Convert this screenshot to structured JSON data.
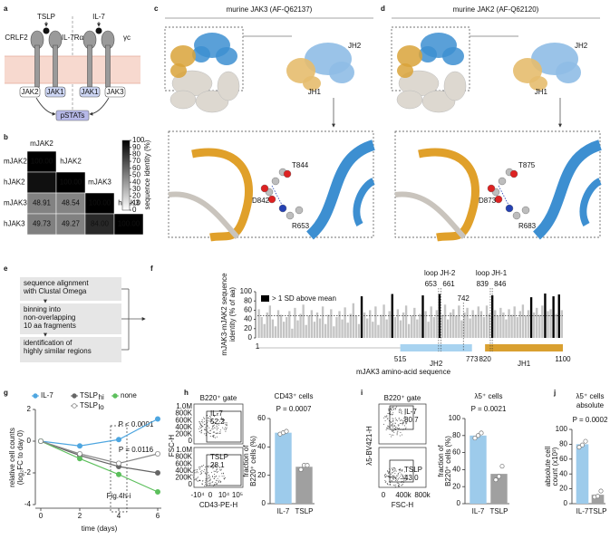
{
  "a": {
    "letter": "a",
    "tslp": "TSLP",
    "il7": "IL-7",
    "crlf2": "CRLF2",
    "il7ra": "IL-7Rα",
    "gc": "γc",
    "jak2": "JAK2",
    "jak1a": "JAK1",
    "jak1b": "JAK1",
    "jak3": "JAK3",
    "pstats": "pSTATs"
  },
  "b": {
    "letter": "b",
    "type": "heatmap",
    "col_labels": [
      "mJAK2",
      "hJAK2",
      "mJAK3",
      "hJAK3"
    ],
    "row_labels": [
      "mJAK2",
      "hJAK2",
      "mJAK3",
      "hJAK3"
    ],
    "values": [
      [
        100
      ],
      [
        93.73,
        100
      ],
      [
        48.91,
        48.54,
        100
      ],
      [
        49.73,
        49.27,
        84,
        100
      ]
    ],
    "value_labels": [
      [
        "100.00"
      ],
      [
        "93.73",
        "100.00"
      ],
      [
        "48.91",
        "48.54",
        "100.00"
      ],
      [
        "49.73",
        "49.27",
        "84.00",
        "100.00"
      ]
    ],
    "clim": [
      0,
      100
    ],
    "colorbar_ticks": [
      0,
      10,
      20,
      30,
      40,
      50,
      60,
      70,
      80,
      90,
      100
    ],
    "colorbar_label": "sequence identity (%)"
  },
  "c": {
    "letter": "c",
    "title": "murine JAK3 (AF-Q62137)",
    "jh2": "JH2",
    "jh1": "JH1",
    "res_t": "T844",
    "res_d": "D842",
    "res_r": "R653"
  },
  "d": {
    "letter": "d",
    "title": "murine JAK2 (AF-Q62120)",
    "jh2": "JH2",
    "jh1": "JH1",
    "res_t": "T875",
    "res_d": "D873",
    "res_r": "R683"
  },
  "e": {
    "letter": "e",
    "steps": [
      [
        "sequence alignment",
        "with Clustal Omega"
      ],
      [
        "binning into",
        "non-overlapping",
        "10 aa fragments"
      ],
      [
        "identification of",
        "highly similar regions"
      ]
    ]
  },
  "f": {
    "letter": "f",
    "type": "bar",
    "ylabel": [
      "mJAK3-mJAK2 sequence",
      "identity (% of aa)"
    ],
    "xlabel": "mJAK3 amino-acid sequence",
    "ylim": [
      0,
      100
    ],
    "yticks": [
      0,
      20,
      40,
      60,
      80,
      100
    ],
    "xlim": [
      1,
      1100
    ],
    "bin": 10,
    "values": [
      62,
      45,
      30,
      55,
      70,
      40,
      25,
      60,
      50,
      35,
      45,
      58,
      20,
      65,
      38,
      52,
      72,
      28,
      48,
      60,
      35,
      55,
      42,
      68,
      30,
      50,
      62,
      25,
      45,
      58,
      40,
      66,
      33,
      52,
      75,
      48,
      30,
      90,
      55,
      42,
      60,
      35,
      68,
      28,
      50,
      72,
      40,
      58,
      95,
      45,
      62,
      38,
      55,
      70,
      30,
      48,
      65,
      40,
      52,
      92,
      58,
      35,
      68,
      45,
      60,
      95,
      50,
      72,
      40,
      55,
      62,
      48,
      70,
      38,
      55,
      65,
      42,
      60,
      50,
      68,
      58,
      45,
      70,
      52,
      92,
      60,
      48,
      65,
      55,
      40,
      62,
      50,
      68,
      45,
      58,
      72,
      48,
      60,
      88,
      55,
      65,
      50,
      70,
      96,
      58,
      62,
      90,
      52,
      94,
      60
    ],
    "color": "#c4c4c4",
    "highlight_color": "#000000",
    "highlighted": [
      37,
      48,
      59,
      65,
      84,
      98,
      103,
      106,
      108
    ],
    "legend": "> 1 SD above mean",
    "mean": 48,
    "domains": [
      {
        "name": "JH2",
        "start": 515,
        "end": 773,
        "color": "#a8d3f0"
      },
      {
        "name": "JH1",
        "start": 820,
        "end": 1100,
        "color": "#d9a030"
      }
    ],
    "loops": [
      {
        "name": "loop JH-2",
        "start": 653,
        "end": 661
      },
      {
        "name": "loop JH-1",
        "start": 839,
        "end": 846
      }
    ],
    "marker": 742
  },
  "g": {
    "letter": "g",
    "type": "line",
    "ylabel": [
      "relative cell counts",
      "(log₂FC to day 0)"
    ],
    "xlabel": "time (days)",
    "x": [
      0,
      2,
      4,
      6
    ],
    "xlim": [
      0,
      6
    ],
    "xticks": [
      0,
      2,
      4,
      6
    ],
    "ylim": [
      -4,
      2
    ],
    "yticks": [
      -4,
      -2,
      0,
      2
    ],
    "series": [
      {
        "name": "IL-7",
        "color": "#4ea6e0",
        "values": [
          0,
          -0.3,
          0.1,
          1.4
        ]
      },
      {
        "name": "TSLP",
        "sub": "hi",
        "color": "#666666",
        "values": [
          0,
          -0.9,
          -1.6,
          -2.0
        ]
      },
      {
        "name": "none",
        "color": "#5cbf5c",
        "values": [
          0,
          -1.1,
          -2.1,
          -3.2
        ]
      },
      {
        "name": "TSLP",
        "sub": "lo",
        "color": "#ffffff",
        "values": [
          0,
          -0.8,
          -1.4,
          -0.8
        ]
      }
    ],
    "annotations": [
      "P < 0.0001",
      "P = 0.0116",
      "Fig.4h-i"
    ],
    "box_x": 4
  },
  "h": {
    "letter": "h",
    "type": "bar",
    "title": [
      "CD43⁺ cells"
    ],
    "p": "P = 0.0007",
    "ylabel": [
      "fraction of",
      "B220⁺ cells (%)"
    ],
    "categories": [
      "IL-7",
      "TSLP"
    ],
    "values": [
      50,
      26
    ],
    "colors": [
      "#9dcbeb",
      "#a0a0a0"
    ],
    "points": [
      [
        49,
        50,
        51
      ],
      [
        24,
        27,
        27
      ]
    ],
    "ylim": [
      0,
      60
    ],
    "yticks": [
      0,
      20,
      40,
      60
    ],
    "flow": {
      "gate": "B220⁺ gate",
      "ylabel": "FSC-H",
      "xlabel": "CD43-PE-H",
      "yticks": [
        "1.0M",
        "800K",
        "600K",
        "400K",
        "200K",
        "0"
      ],
      "xticks": [
        "-10⁴",
        "0",
        "10⁴",
        "10⁵"
      ],
      "plots": [
        {
          "label": "IL-7",
          "pct": "52.2"
        },
        {
          "label": "TSLP",
          "pct": "28.1"
        }
      ]
    }
  },
  "i": {
    "letter": "i",
    "type": "bar",
    "title": [
      "λ5⁺ cells"
    ],
    "p": "P = 0.0021",
    "ylabel": [
      "fraction of",
      "B220⁺ cells (%)"
    ],
    "categories": [
      "IL-7",
      "TSLP"
    ],
    "values": [
      80,
      35
    ],
    "colors": [
      "#9dcbeb",
      "#a0a0a0"
    ],
    "points": [
      [
        77,
        80,
        83
      ],
      [
        28,
        32,
        44
      ]
    ],
    "ylim": [
      0,
      100
    ],
    "yticks": [
      0,
      20,
      40,
      60,
      80,
      100
    ],
    "flow": {
      "gate": "B220⁺ gate",
      "ylabel": "λ5-BV421-H",
      "xlabel": "FSC-H",
      "xticks": [
        "0",
        "400k",
        "800k"
      ],
      "plots": [
        {
          "label": "IL-7",
          "pct": "80.7"
        },
        {
          "label": "TSLP",
          "pct": "43.0"
        }
      ]
    }
  },
  "j": {
    "letter": "j",
    "type": "bar",
    "title": [
      "λ5⁺ cells",
      "absolute"
    ],
    "p": "P = 0.0002",
    "ylabel": [
      "absolute cell",
      "count (x10³)"
    ],
    "categories": [
      "IL-7",
      "TSLP"
    ],
    "values": [
      80,
      12
    ],
    "colors": [
      "#9dcbeb",
      "#a0a0a0"
    ],
    "points": [
      [
        76,
        79,
        84
      ],
      [
        9,
        10,
        17
      ]
    ],
    "ylim": [
      0,
      100
    ],
    "yticks": [
      0,
      20,
      40,
      60,
      80,
      100
    ]
  }
}
